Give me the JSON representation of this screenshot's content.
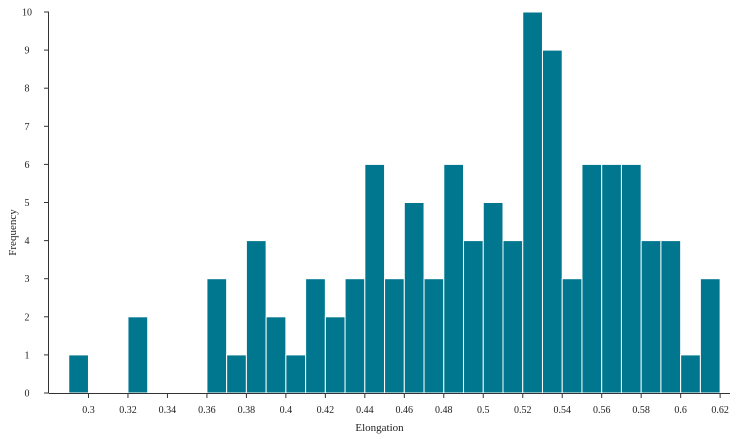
{
  "chart_data": {
    "type": "bar",
    "xlabel": "Elongation",
    "ylabel": "Frequency",
    "xlim": [
      0.28,
      0.625
    ],
    "ylim": [
      0,
      10
    ],
    "bin_width": 0.01,
    "bar_color": "#00778F",
    "x_ticks": [
      "0.3",
      "0.32",
      "0.34",
      "0.36",
      "0.38",
      "0.4",
      "0.42",
      "0.44",
      "0.46",
      "0.48",
      "0.5",
      "0.52",
      "0.54",
      "0.56",
      "0.58",
      "0.6",
      "0.62"
    ],
    "y_ticks": [
      "0",
      "1",
      "2",
      "3",
      "4",
      "5",
      "6",
      "7",
      "8",
      "9",
      "10"
    ],
    "bins": [
      {
        "x": 0.29,
        "value": 1
      },
      {
        "x": 0.32,
        "value": 2
      },
      {
        "x": 0.36,
        "value": 3
      },
      {
        "x": 0.37,
        "value": 1
      },
      {
        "x": 0.38,
        "value": 4
      },
      {
        "x": 0.39,
        "value": 2
      },
      {
        "x": 0.4,
        "value": 1
      },
      {
        "x": 0.41,
        "value": 3
      },
      {
        "x": 0.42,
        "value": 2
      },
      {
        "x": 0.43,
        "value": 3
      },
      {
        "x": 0.44,
        "value": 6
      },
      {
        "x": 0.45,
        "value": 3
      },
      {
        "x": 0.46,
        "value": 5
      },
      {
        "x": 0.47,
        "value": 3
      },
      {
        "x": 0.48,
        "value": 6
      },
      {
        "x": 0.49,
        "value": 4
      },
      {
        "x": 0.5,
        "value": 5
      },
      {
        "x": 0.51,
        "value": 4
      },
      {
        "x": 0.52,
        "value": 10
      },
      {
        "x": 0.53,
        "value": 9
      },
      {
        "x": 0.54,
        "value": 3
      },
      {
        "x": 0.55,
        "value": 6
      },
      {
        "x": 0.56,
        "value": 6
      },
      {
        "x": 0.57,
        "value": 6
      },
      {
        "x": 0.58,
        "value": 4
      },
      {
        "x": 0.59,
        "value": 4
      },
      {
        "x": 0.6,
        "value": 1
      },
      {
        "x": 0.61,
        "value": 3
      }
    ]
  }
}
